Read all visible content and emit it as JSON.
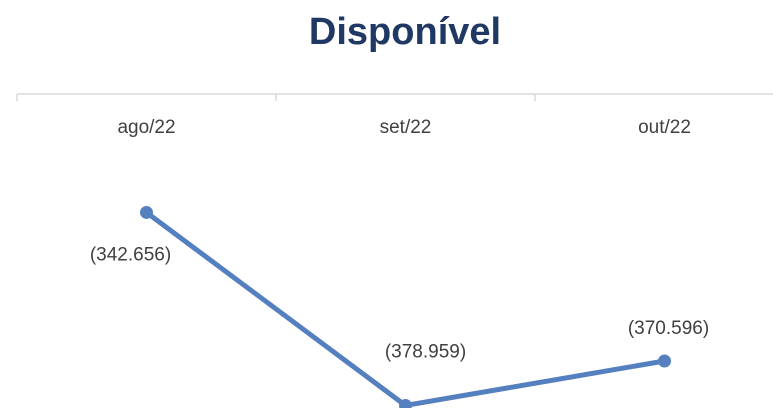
{
  "chart_data": {
    "type": "line",
    "title": "Disponível",
    "categories": [
      "ago/22",
      "set/22",
      "out/22"
    ],
    "series": [
      {
        "name": "Disponível",
        "color": "#5580c0",
        "values": [
          -342656,
          -378959,
          -370596
        ],
        "value_labels": [
          "(342.656)",
          "(378.959)",
          "(370.596)"
        ]
      }
    ],
    "ylim": [
      -380000,
      -320000
    ],
    "x_axis_position": "top"
  }
}
